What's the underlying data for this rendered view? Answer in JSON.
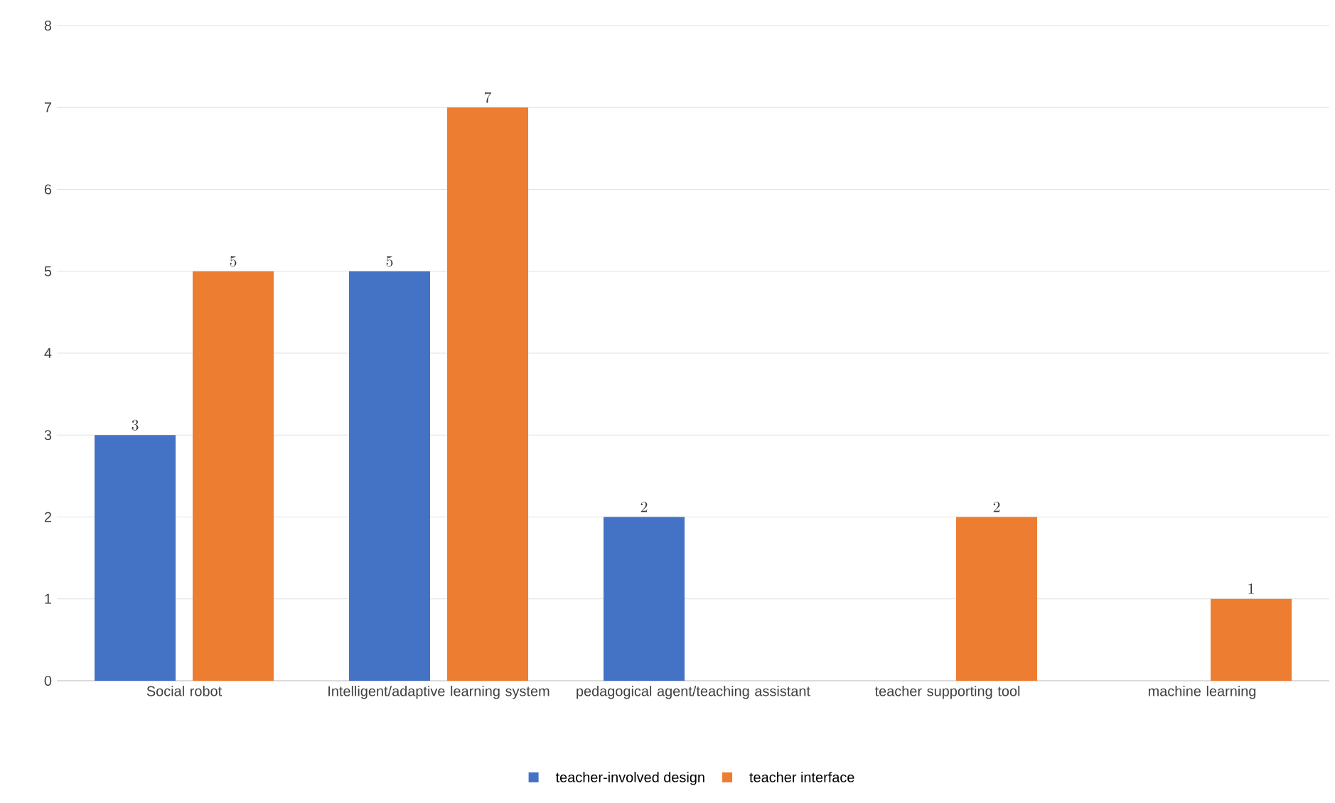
{
  "chart_data": {
    "type": "bar",
    "categories": [
      "Social robot",
      "Intelligent/adaptive learning system",
      "pedagogical agent/teaching assistant",
      "teacher supporting tool",
      "machine learning"
    ],
    "series": [
      {
        "name": "teacher-involved design",
        "color": "#4472c4",
        "values": [
          3,
          5,
          2,
          null,
          null
        ]
      },
      {
        "name": "teacher interface",
        "color": "#ed7d31",
        "values": [
          5,
          7,
          null,
          2,
          1
        ]
      }
    ],
    "ylim": [
      0,
      8
    ],
    "yticks": [
      0,
      1,
      2,
      3,
      4,
      5,
      6,
      7,
      8
    ],
    "grid": "y",
    "legend": "bottom",
    "data_labels": true
  }
}
